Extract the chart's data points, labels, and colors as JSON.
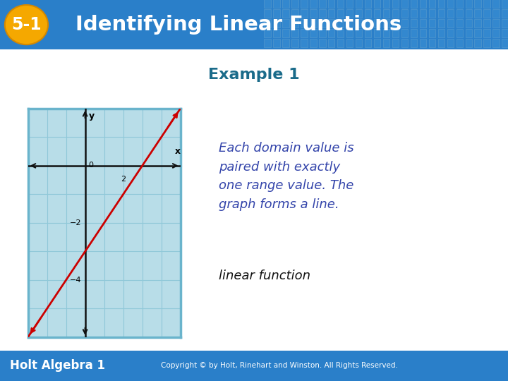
{
  "title_number": "5-1",
  "title_text": "Identifying Linear Functions",
  "example_label": "Example 1",
  "description_text": "Each domain value is\npaired with exactly\none range value. The\ngraph forms a line.",
  "answer_text": "linear function",
  "description_color": "#3344aa",
  "answer_color": "#111111",
  "example_color": "#1a6b8a",
  "header_bg_color": "#2a7fc9",
  "header_text_color": "#ffffff",
  "badge_bg_color": "#f5a800",
  "badge_text_color": "#ffffff",
  "footer_bg_color": "#2a7fc9",
  "footer_text": "Holt Algebra 1",
  "footer_copyright": "Copyright © by Holt, Rinehart and Winston. All Rights Reserved.",
  "graph_bg_color": "#b8dde8",
  "graph_border_color": "#6ab4cc",
  "line_color": "#cc0000",
  "grid_color": "#90c8d8",
  "axis_color": "#111111",
  "body_bg_color": "#ffffff",
  "xlim": [
    -3,
    5
  ],
  "ylim": [
    -6,
    2
  ],
  "line_slope": 1.0,
  "line_intercept": -3.0
}
